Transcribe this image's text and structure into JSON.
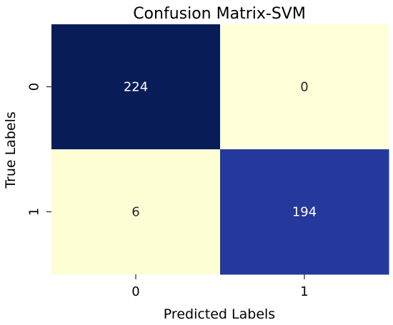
{
  "chart_data": {
    "type": "heatmap",
    "title": "Confusion Matrix-SVM",
    "xlabel": "Predicted Labels",
    "ylabel": "True Labels",
    "x_categories": [
      "0",
      "1"
    ],
    "y_categories": [
      "0",
      "1"
    ],
    "values": [
      [
        224,
        0
      ],
      [
        6,
        194
      ]
    ],
    "colormap": "YlGnBu",
    "colorbar": false,
    "cell_colors": [
      [
        "#081d58",
        "#ffffd9"
      ],
      [
        "#fdfed4",
        "#24399b"
      ]
    ],
    "label_colors": [
      [
        "#ffffff",
        "#262626"
      ],
      [
        "#262626",
        "#ffffff"
      ]
    ]
  }
}
